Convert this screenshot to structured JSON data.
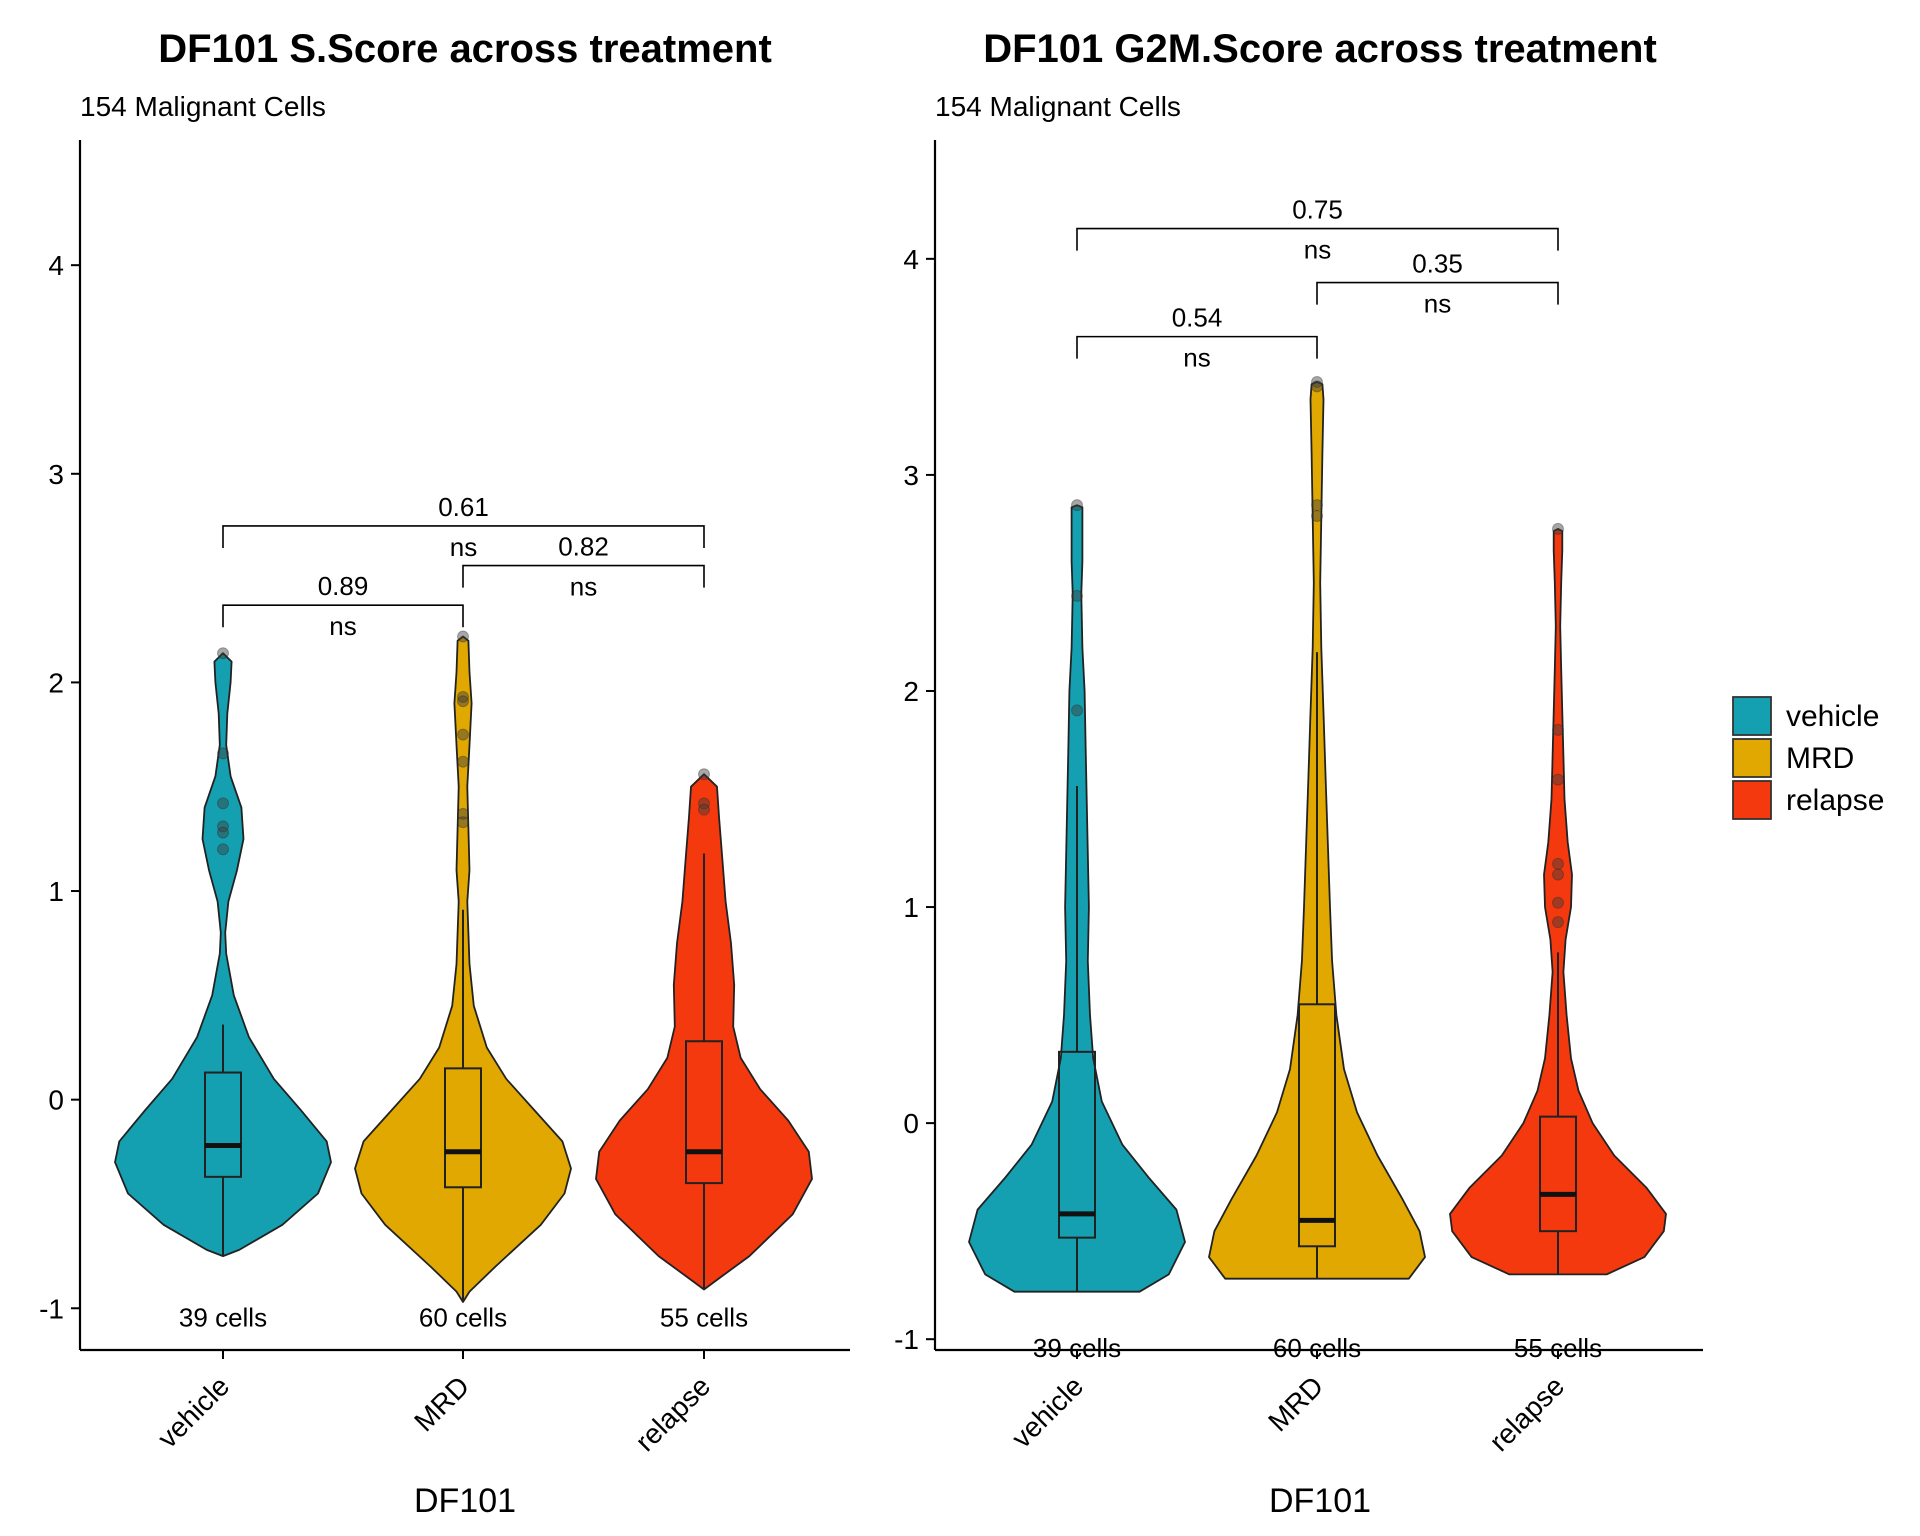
{
  "chart_data": [
    {
      "type": "violin",
      "title": "DF101 S.Score across treatment",
      "subtitle": "154 Malignant Cells",
      "xlabel": "DF101",
      "ylabel": "",
      "ylim": [
        -1.2,
        4.6
      ],
      "yticks": [
        -1,
        0,
        1,
        2,
        3,
        4
      ],
      "ytick_labels": [
        "-1",
        "0",
        "1",
        "2",
        "3",
        "4"
      ],
      "categories": [
        "vehicle",
        "MRD",
        "relapse"
      ],
      "counts": [
        "39 cells",
        "60 cells",
        "55 cells"
      ],
      "groups": [
        {
          "name": "vehicle",
          "color": "#14A0B0",
          "violin_min": -0.75,
          "violin_max": 2.14,
          "density": [
            [
              -0.75,
              0.0
            ],
            [
              -0.72,
              0.15
            ],
            [
              -0.6,
              0.55
            ],
            [
              -0.45,
              0.88
            ],
            [
              -0.3,
              1.0
            ],
            [
              -0.2,
              0.96
            ],
            [
              -0.05,
              0.72
            ],
            [
              0.1,
              0.47
            ],
            [
              0.3,
              0.24
            ],
            [
              0.5,
              0.1
            ],
            [
              0.7,
              0.03
            ],
            [
              0.8,
              0.02
            ],
            [
              0.95,
              0.05
            ],
            [
              1.1,
              0.13
            ],
            [
              1.25,
              0.19
            ],
            [
              1.4,
              0.17
            ],
            [
              1.55,
              0.07
            ],
            [
              1.7,
              0.03
            ],
            [
              1.85,
              0.04
            ],
            [
              2.0,
              0.07
            ],
            [
              2.1,
              0.08
            ],
            [
              2.14,
              0.0
            ]
          ],
          "box": {
            "q1": -0.37,
            "median": -0.22,
            "q3": 0.13,
            "whisker_low": -0.75,
            "whisker_high": 0.36
          },
          "points": [
            2.14,
            1.66,
            1.42,
            1.31,
            1.28,
            1.2
          ]
        },
        {
          "name": "MRD",
          "color": "#E0A800",
          "violin_min": -0.97,
          "violin_max": 2.22,
          "density": [
            [
              -0.97,
              0.0
            ],
            [
              -0.92,
              0.06
            ],
            [
              -0.8,
              0.3
            ],
            [
              -0.6,
              0.72
            ],
            [
              -0.45,
              0.94
            ],
            [
              -0.33,
              1.0
            ],
            [
              -0.2,
              0.92
            ],
            [
              -0.05,
              0.66
            ],
            [
              0.1,
              0.4
            ],
            [
              0.25,
              0.22
            ],
            [
              0.45,
              0.1
            ],
            [
              0.65,
              0.06
            ],
            [
              0.8,
              0.05
            ],
            [
              0.95,
              0.04
            ],
            [
              1.1,
              0.06
            ],
            [
              1.3,
              0.05
            ],
            [
              1.5,
              0.04
            ],
            [
              1.7,
              0.06
            ],
            [
              1.9,
              0.08
            ],
            [
              2.05,
              0.06
            ],
            [
              2.2,
              0.05
            ],
            [
              2.22,
              0.0
            ]
          ],
          "box": {
            "q1": -0.42,
            "median": -0.25,
            "q3": 0.15,
            "whisker_low": -0.97,
            "whisker_high": 0.91
          },
          "points": [
            2.22,
            1.93,
            1.91,
            1.75,
            1.62,
            1.37,
            1.33
          ]
        },
        {
          "name": "relapse",
          "color": "#F5390E",
          "violin_min": -0.91,
          "violin_max": 1.56,
          "density": [
            [
              -0.91,
              0.0
            ],
            [
              -0.86,
              0.13
            ],
            [
              -0.75,
              0.42
            ],
            [
              -0.55,
              0.82
            ],
            [
              -0.38,
              1.0
            ],
            [
              -0.25,
              0.97
            ],
            [
              -0.1,
              0.78
            ],
            [
              0.05,
              0.52
            ],
            [
              0.2,
              0.34
            ],
            [
              0.35,
              0.27
            ],
            [
              0.55,
              0.28
            ],
            [
              0.75,
              0.25
            ],
            [
              0.95,
              0.2
            ],
            [
              1.15,
              0.17
            ],
            [
              1.35,
              0.14
            ],
            [
              1.5,
              0.12
            ],
            [
              1.56,
              0.0
            ]
          ],
          "box": {
            "q1": -0.4,
            "median": -0.25,
            "q3": 0.28,
            "whisker_low": -0.91,
            "whisker_high": 1.18
          },
          "points": [
            1.56,
            1.42,
            1.39
          ]
        }
      ],
      "comparisons": [
        {
          "from": "vehicle",
          "to": "MRD",
          "y": 2.37,
          "p": "0.89",
          "sig": "ns"
        },
        {
          "from": "MRD",
          "to": "relapse",
          "y": 2.56,
          "p": "0.82",
          "sig": "ns"
        },
        {
          "from": "vehicle",
          "to": "relapse",
          "y": 2.75,
          "p": "0.61",
          "sig": "ns"
        }
      ]
    },
    {
      "type": "violin",
      "title": "DF101 G2M.Score across treatment",
      "subtitle": "154 Malignant Cells",
      "xlabel": "DF101",
      "ylabel": "",
      "ylim": [
        -1.05,
        4.55
      ],
      "yticks": [
        -1,
        0,
        1,
        2,
        3,
        4
      ],
      "ytick_labels": [
        "-1",
        "0",
        "1",
        "2",
        "3",
        "4"
      ],
      "categories": [
        "vehicle",
        "MRD",
        "relapse"
      ],
      "counts": [
        "39 cells",
        "60 cells",
        "55 cells"
      ],
      "groups": [
        {
          "name": "vehicle",
          "color": "#14A0B0",
          "violin_min": -0.78,
          "violin_max": 2.86,
          "density": [
            [
              -0.78,
              0.58
            ],
            [
              -0.7,
              0.85
            ],
            [
              -0.55,
              1.0
            ],
            [
              -0.4,
              0.92
            ],
            [
              -0.25,
              0.66
            ],
            [
              -0.1,
              0.42
            ],
            [
              0.1,
              0.23
            ],
            [
              0.3,
              0.15
            ],
            [
              0.5,
              0.12
            ],
            [
              0.75,
              0.1
            ],
            [
              1.0,
              0.11
            ],
            [
              1.25,
              0.1
            ],
            [
              1.5,
              0.09
            ],
            [
              1.75,
              0.08
            ],
            [
              2.0,
              0.07
            ],
            [
              2.2,
              0.05
            ],
            [
              2.45,
              0.04
            ],
            [
              2.6,
              0.05
            ],
            [
              2.75,
              0.05
            ],
            [
              2.85,
              0.05
            ],
            [
              2.86,
              0.0
            ]
          ],
          "box": {
            "q1": -0.53,
            "median": -0.42,
            "q3": 0.33,
            "whisker_low": -0.78,
            "whisker_high": 1.56
          },
          "points": [
            2.86,
            2.44,
            1.91
          ]
        },
        {
          "name": "MRD",
          "color": "#E0A800",
          "violin_min": -0.72,
          "violin_max": 3.43,
          "density": [
            [
              -0.72,
              0.85
            ],
            [
              -0.62,
              1.0
            ],
            [
              -0.5,
              0.95
            ],
            [
              -0.35,
              0.79
            ],
            [
              -0.15,
              0.56
            ],
            [
              0.05,
              0.37
            ],
            [
              0.25,
              0.25
            ],
            [
              0.5,
              0.18
            ],
            [
              0.75,
              0.14
            ],
            [
              1.0,
              0.12
            ],
            [
              1.3,
              0.1
            ],
            [
              1.6,
              0.08
            ],
            [
              1.9,
              0.06
            ],
            [
              2.2,
              0.04
            ],
            [
              2.5,
              0.03
            ],
            [
              2.8,
              0.04
            ],
            [
              3.1,
              0.05
            ],
            [
              3.35,
              0.06
            ],
            [
              3.42,
              0.05
            ],
            [
              3.43,
              0.0
            ]
          ],
          "box": {
            "q1": -0.57,
            "median": -0.45,
            "q3": 0.55,
            "whisker_low": -0.72,
            "whisker_high": 2.18
          },
          "points": [
            3.43,
            3.41,
            2.86,
            2.81
          ]
        },
        {
          "name": "relapse",
          "color": "#F5390E",
          "violin_min": -0.7,
          "violin_max": 2.75,
          "density": [
            [
              -0.7,
              0.45
            ],
            [
              -0.62,
              0.8
            ],
            [
              -0.5,
              0.98
            ],
            [
              -0.42,
              1.0
            ],
            [
              -0.3,
              0.82
            ],
            [
              -0.15,
              0.52
            ],
            [
              0.0,
              0.32
            ],
            [
              0.15,
              0.19
            ],
            [
              0.3,
              0.12
            ],
            [
              0.5,
              0.08
            ],
            [
              0.7,
              0.05
            ],
            [
              0.85,
              0.07
            ],
            [
              1.0,
              0.12
            ],
            [
              1.15,
              0.13
            ],
            [
              1.3,
              0.09
            ],
            [
              1.5,
              0.06
            ],
            [
              1.7,
              0.05
            ],
            [
              1.9,
              0.04
            ],
            [
              2.1,
              0.03
            ],
            [
              2.3,
              0.02
            ],
            [
              2.5,
              0.03
            ],
            [
              2.65,
              0.04
            ],
            [
              2.74,
              0.04
            ],
            [
              2.75,
              0.0
            ]
          ],
          "box": {
            "q1": -0.5,
            "median": -0.33,
            "q3": 0.03,
            "whisker_low": -0.7,
            "whisker_high": 0.79
          },
          "points": [
            2.75,
            1.82,
            1.59,
            1.2,
            1.15,
            1.02,
            0.93
          ]
        }
      ],
      "comparisons": [
        {
          "from": "vehicle",
          "to": "MRD",
          "y": 3.64,
          "p": "0.54",
          "sig": "ns"
        },
        {
          "from": "MRD",
          "to": "relapse",
          "y": 3.89,
          "p": "0.35",
          "sig": "ns"
        },
        {
          "from": "vehicle",
          "to": "relapse",
          "y": 4.14,
          "p": "0.75",
          "sig": "ns"
        }
      ]
    }
  ],
  "legend": {
    "placement": "right",
    "items": [
      {
        "label": "vehicle",
        "color": "#14A0B0"
      },
      {
        "label": "MRD",
        "color": "#E0A800"
      },
      {
        "label": "relapse",
        "color": "#F5390E"
      }
    ]
  }
}
